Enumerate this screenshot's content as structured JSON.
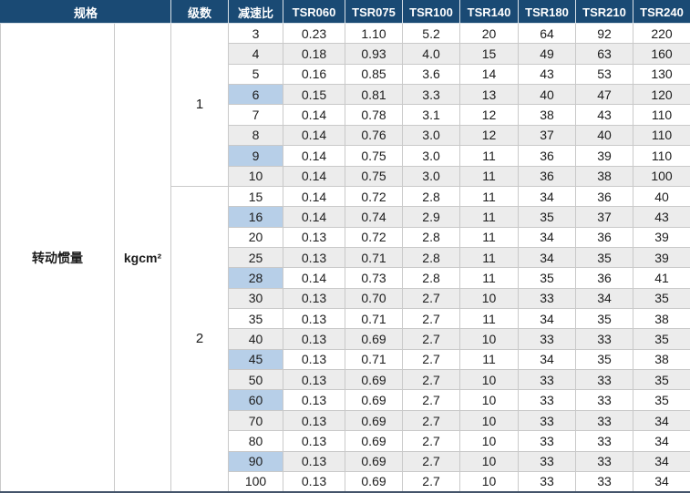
{
  "table": {
    "header": {
      "spec_label": "规格",
      "stages_label": "级数",
      "ratio_label": "减速比",
      "models": [
        "TSR060",
        "TSR075",
        "TSR100",
        "TSR140",
        "TSR180",
        "TSR210",
        "TSR240"
      ]
    },
    "row_group_label": "转动惯量",
    "unit_label": "kgcm²",
    "groups": [
      {
        "stages": "1",
        "rows": [
          {
            "ratio": "3",
            "highlight": false,
            "values": [
              "0.23",
              "1.10",
              "5.2",
              "20",
              "64",
              "92",
              "220"
            ]
          },
          {
            "ratio": "4",
            "highlight": false,
            "values": [
              "0.18",
              "0.93",
              "4.0",
              "15",
              "49",
              "63",
              "160"
            ]
          },
          {
            "ratio": "5",
            "highlight": false,
            "values": [
              "0.16",
              "0.85",
              "3.6",
              "14",
              "43",
              "53",
              "130"
            ]
          },
          {
            "ratio": "6",
            "highlight": true,
            "values": [
              "0.15",
              "0.81",
              "3.3",
              "13",
              "40",
              "47",
              "120"
            ]
          },
          {
            "ratio": "7",
            "highlight": false,
            "values": [
              "0.14",
              "0.78",
              "3.1",
              "12",
              "38",
              "43",
              "110"
            ]
          },
          {
            "ratio": "8",
            "highlight": false,
            "values": [
              "0.14",
              "0.76",
              "3.0",
              "12",
              "37",
              "40",
              "110"
            ]
          },
          {
            "ratio": "9",
            "highlight": true,
            "values": [
              "0.14",
              "0.75",
              "3.0",
              "11",
              "36",
              "39",
              "110"
            ]
          },
          {
            "ratio": "10",
            "highlight": false,
            "values": [
              "0.14",
              "0.75",
              "3.0",
              "11",
              "36",
              "38",
              "100"
            ]
          }
        ]
      },
      {
        "stages": "2",
        "rows": [
          {
            "ratio": "15",
            "highlight": false,
            "values": [
              "0.14",
              "0.72",
              "2.8",
              "11",
              "34",
              "36",
              "40"
            ]
          },
          {
            "ratio": "16",
            "highlight": true,
            "values": [
              "0.14",
              "0.74",
              "2.9",
              "11",
              "35",
              "37",
              "43"
            ]
          },
          {
            "ratio": "20",
            "highlight": false,
            "values": [
              "0.13",
              "0.72",
              "2.8",
              "11",
              "34",
              "36",
              "39"
            ]
          },
          {
            "ratio": "25",
            "highlight": false,
            "values": [
              "0.13",
              "0.71",
              "2.8",
              "11",
              "34",
              "35",
              "39"
            ]
          },
          {
            "ratio": "28",
            "highlight": true,
            "values": [
              "0.14",
              "0.73",
              "2.8",
              "11",
              "35",
              "36",
              "41"
            ]
          },
          {
            "ratio": "30",
            "highlight": false,
            "values": [
              "0.13",
              "0.70",
              "2.7",
              "10",
              "33",
              "34",
              "35"
            ]
          },
          {
            "ratio": "35",
            "highlight": false,
            "values": [
              "0.13",
              "0.71",
              "2.7",
              "11",
              "34",
              "35",
              "38"
            ]
          },
          {
            "ratio": "40",
            "highlight": false,
            "values": [
              "0.13",
              "0.69",
              "2.7",
              "10",
              "33",
              "33",
              "35"
            ]
          },
          {
            "ratio": "45",
            "highlight": true,
            "values": [
              "0.13",
              "0.71",
              "2.7",
              "11",
              "34",
              "35",
              "38"
            ]
          },
          {
            "ratio": "50",
            "highlight": false,
            "values": [
              "0.13",
              "0.69",
              "2.7",
              "10",
              "33",
              "33",
              "35"
            ]
          },
          {
            "ratio": "60",
            "highlight": true,
            "values": [
              "0.13",
              "0.69",
              "2.7",
              "10",
              "33",
              "33",
              "35"
            ]
          },
          {
            "ratio": "70",
            "highlight": false,
            "values": [
              "0.13",
              "0.69",
              "2.7",
              "10",
              "33",
              "33",
              "34"
            ]
          },
          {
            "ratio": "80",
            "highlight": false,
            "values": [
              "0.13",
              "0.69",
              "2.7",
              "10",
              "33",
              "33",
              "34"
            ]
          },
          {
            "ratio": "90",
            "highlight": true,
            "values": [
              "0.13",
              "0.69",
              "2.7",
              "10",
              "33",
              "33",
              "34"
            ]
          },
          {
            "ratio": "100",
            "highlight": false,
            "values": [
              "0.13",
              "0.69",
              "2.7",
              "10",
              "33",
              "33",
              "34"
            ]
          }
        ]
      }
    ],
    "colors": {
      "header_bg": "#1a4a74",
      "header_text": "#ffffff",
      "highlight_blue": "#b7cfe8",
      "alt_row_gray": "#ececec",
      "border_gray": "#c9c9c9"
    }
  }
}
